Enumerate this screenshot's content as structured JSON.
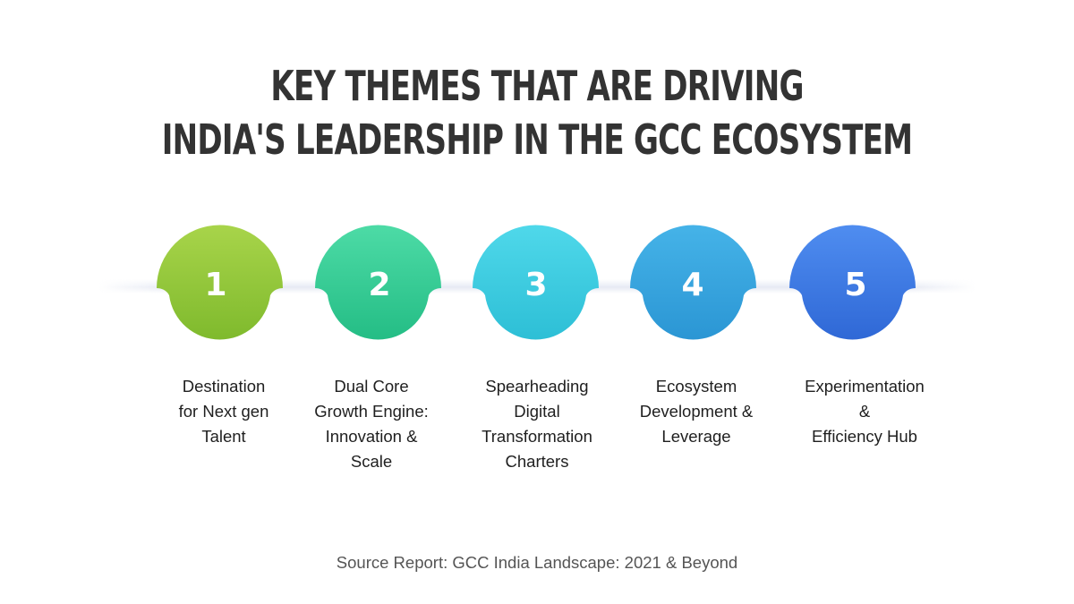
{
  "title": {
    "line1": "KEY THEMES THAT ARE DRIVING",
    "line2": "INDIA'S LEADERSHIP IN THE GCC ECOSYSTEM"
  },
  "steps": [
    {
      "number": "1",
      "label": "Destination\nfor Next gen\nTalent",
      "color_top": "#a8d44a",
      "color_bottom": "#7fba2d"
    },
    {
      "number": "2",
      "label": "Dual Core\nGrowth Engine:\nInnovation &\nScale",
      "color_top": "#4ddba6",
      "color_bottom": "#24bd85"
    },
    {
      "number": "3",
      "label": "Spearheading\nDigital\nTransformation\nCharters",
      "color_top": "#4fd8ea",
      "color_bottom": "#2dbfd6"
    },
    {
      "number": "4",
      "label": "Ecosystem\nDevelopment &\nLeverage",
      "color_top": "#45b3e8",
      "color_bottom": "#2b96d4"
    },
    {
      "number": "5",
      "label": "Experimentation\n&\nEfficiency Hub",
      "color_top": "#4f8df0",
      "color_bottom": "#2f68d6"
    }
  ],
  "source": "Source Report: GCC India Landscape: 2021 & Beyond"
}
